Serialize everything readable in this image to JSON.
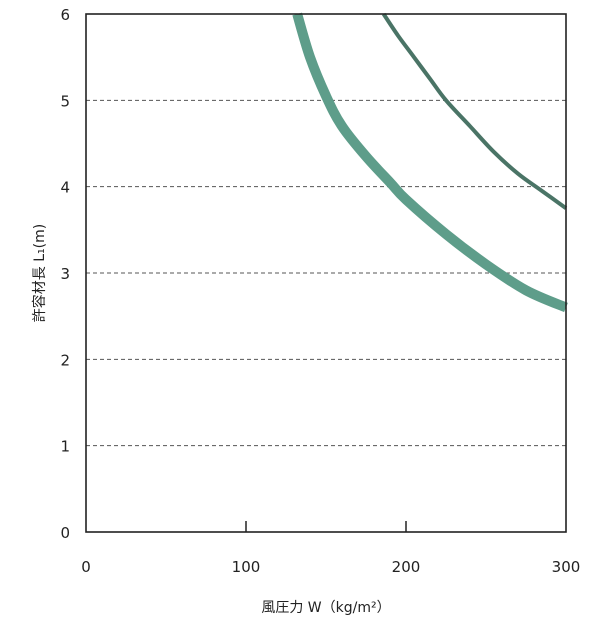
{
  "chart_data": {
    "type": "line",
    "xlabel": "風圧力 W（kg/m²）",
    "ylabel": "許容材長 L₁(m)",
    "xlim": [
      0,
      300
    ],
    "ylim": [
      0,
      6
    ],
    "x_ticks": [
      0,
      100,
      200,
      300
    ],
    "y_ticks": [
      0,
      1,
      2,
      3,
      4,
      5,
      6
    ],
    "grid": "horizontal dashed",
    "series": [
      {
        "color": "#5e9d8a",
        "style": "thick",
        "x": [
          132,
          140,
          150,
          160,
          175,
          190,
          200,
          225,
          250,
          275,
          300
        ],
        "y": [
          6.0,
          5.5,
          5.05,
          4.7,
          4.35,
          4.05,
          3.85,
          3.45,
          3.1,
          2.8,
          2.6
        ]
      },
      {
        "color": "#4a7466",
        "style": "thin",
        "x": [
          186,
          195,
          205,
          215,
          225,
          240,
          255,
          270,
          285,
          300
        ],
        "y": [
          6.0,
          5.75,
          5.5,
          5.25,
          5.0,
          4.7,
          4.4,
          4.15,
          3.95,
          3.75
        ]
      }
    ]
  }
}
